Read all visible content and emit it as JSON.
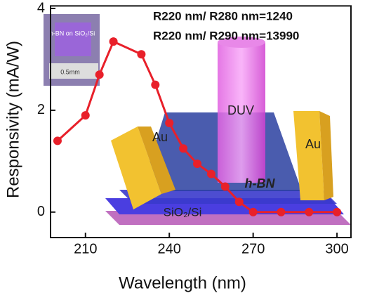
{
  "chart_data": {
    "type": "line",
    "x_label": "Wavelength (nm)",
    "y_label": "Responsivity (mA/W)",
    "x": [
      200,
      210,
      215,
      220,
      230,
      235,
      240,
      245,
      250,
      255,
      260,
      265,
      270,
      280,
      290,
      300
    ],
    "series": [
      {
        "color": "#e8202a",
        "values": [
          1.4,
          1.9,
          2.7,
          3.35,
          3.1,
          2.5,
          1.75,
          1.25,
          0.95,
          0.75,
          0.5,
          0.2,
          0,
          0,
          0,
          0
        ]
      }
    ],
    "xlim": [
      197.5,
      305
    ],
    "xticks": [
      210,
      240,
      270,
      300
    ],
    "ylim": [
      -0.5,
      4.05
    ],
    "yticks": [
      0,
      2,
      4
    ],
    "annotations": [
      "R220 nm/ R280 nm=1240",
      "R220 nm/ R290 nm=13990"
    ],
    "illustration_labels": {
      "beam": "DUV",
      "left_electrode": "Au",
      "right_electrode": "Au",
      "film": "h-BN",
      "substrate": "SiO₂/Si",
      "inset_sample": "h-BN on SiO₂/Si",
      "inset_scale": "0.5mm"
    }
  }
}
